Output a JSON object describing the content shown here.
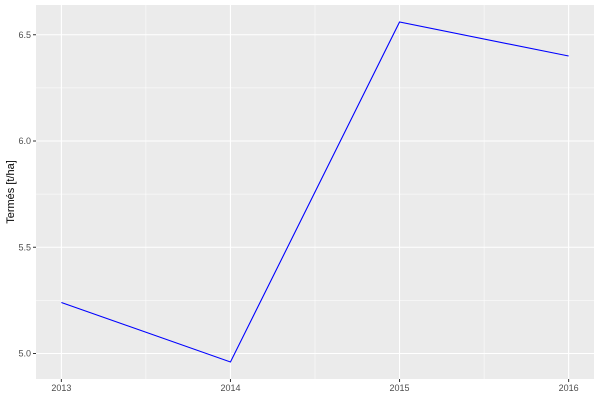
{
  "chart_data": {
    "type": "line",
    "title": "",
    "xlabel": "",
    "ylabel": "Termés [t/ha]",
    "x": [
      2013,
      2014,
      2015,
      2016
    ],
    "series": [
      {
        "values": [
          5.24,
          4.96,
          6.56,
          6.4
        ],
        "color": "#0000ff"
      }
    ],
    "xticks": [
      "2013",
      "2014",
      "2015",
      "2016"
    ],
    "yticks": [
      "5.0",
      "5.5",
      "6.0",
      "6.5"
    ],
    "xlim": [
      2012.85,
      2016.15
    ],
    "ylim": [
      4.88,
      6.64
    ],
    "grid": true,
    "panel_background": "#ebebeb"
  }
}
